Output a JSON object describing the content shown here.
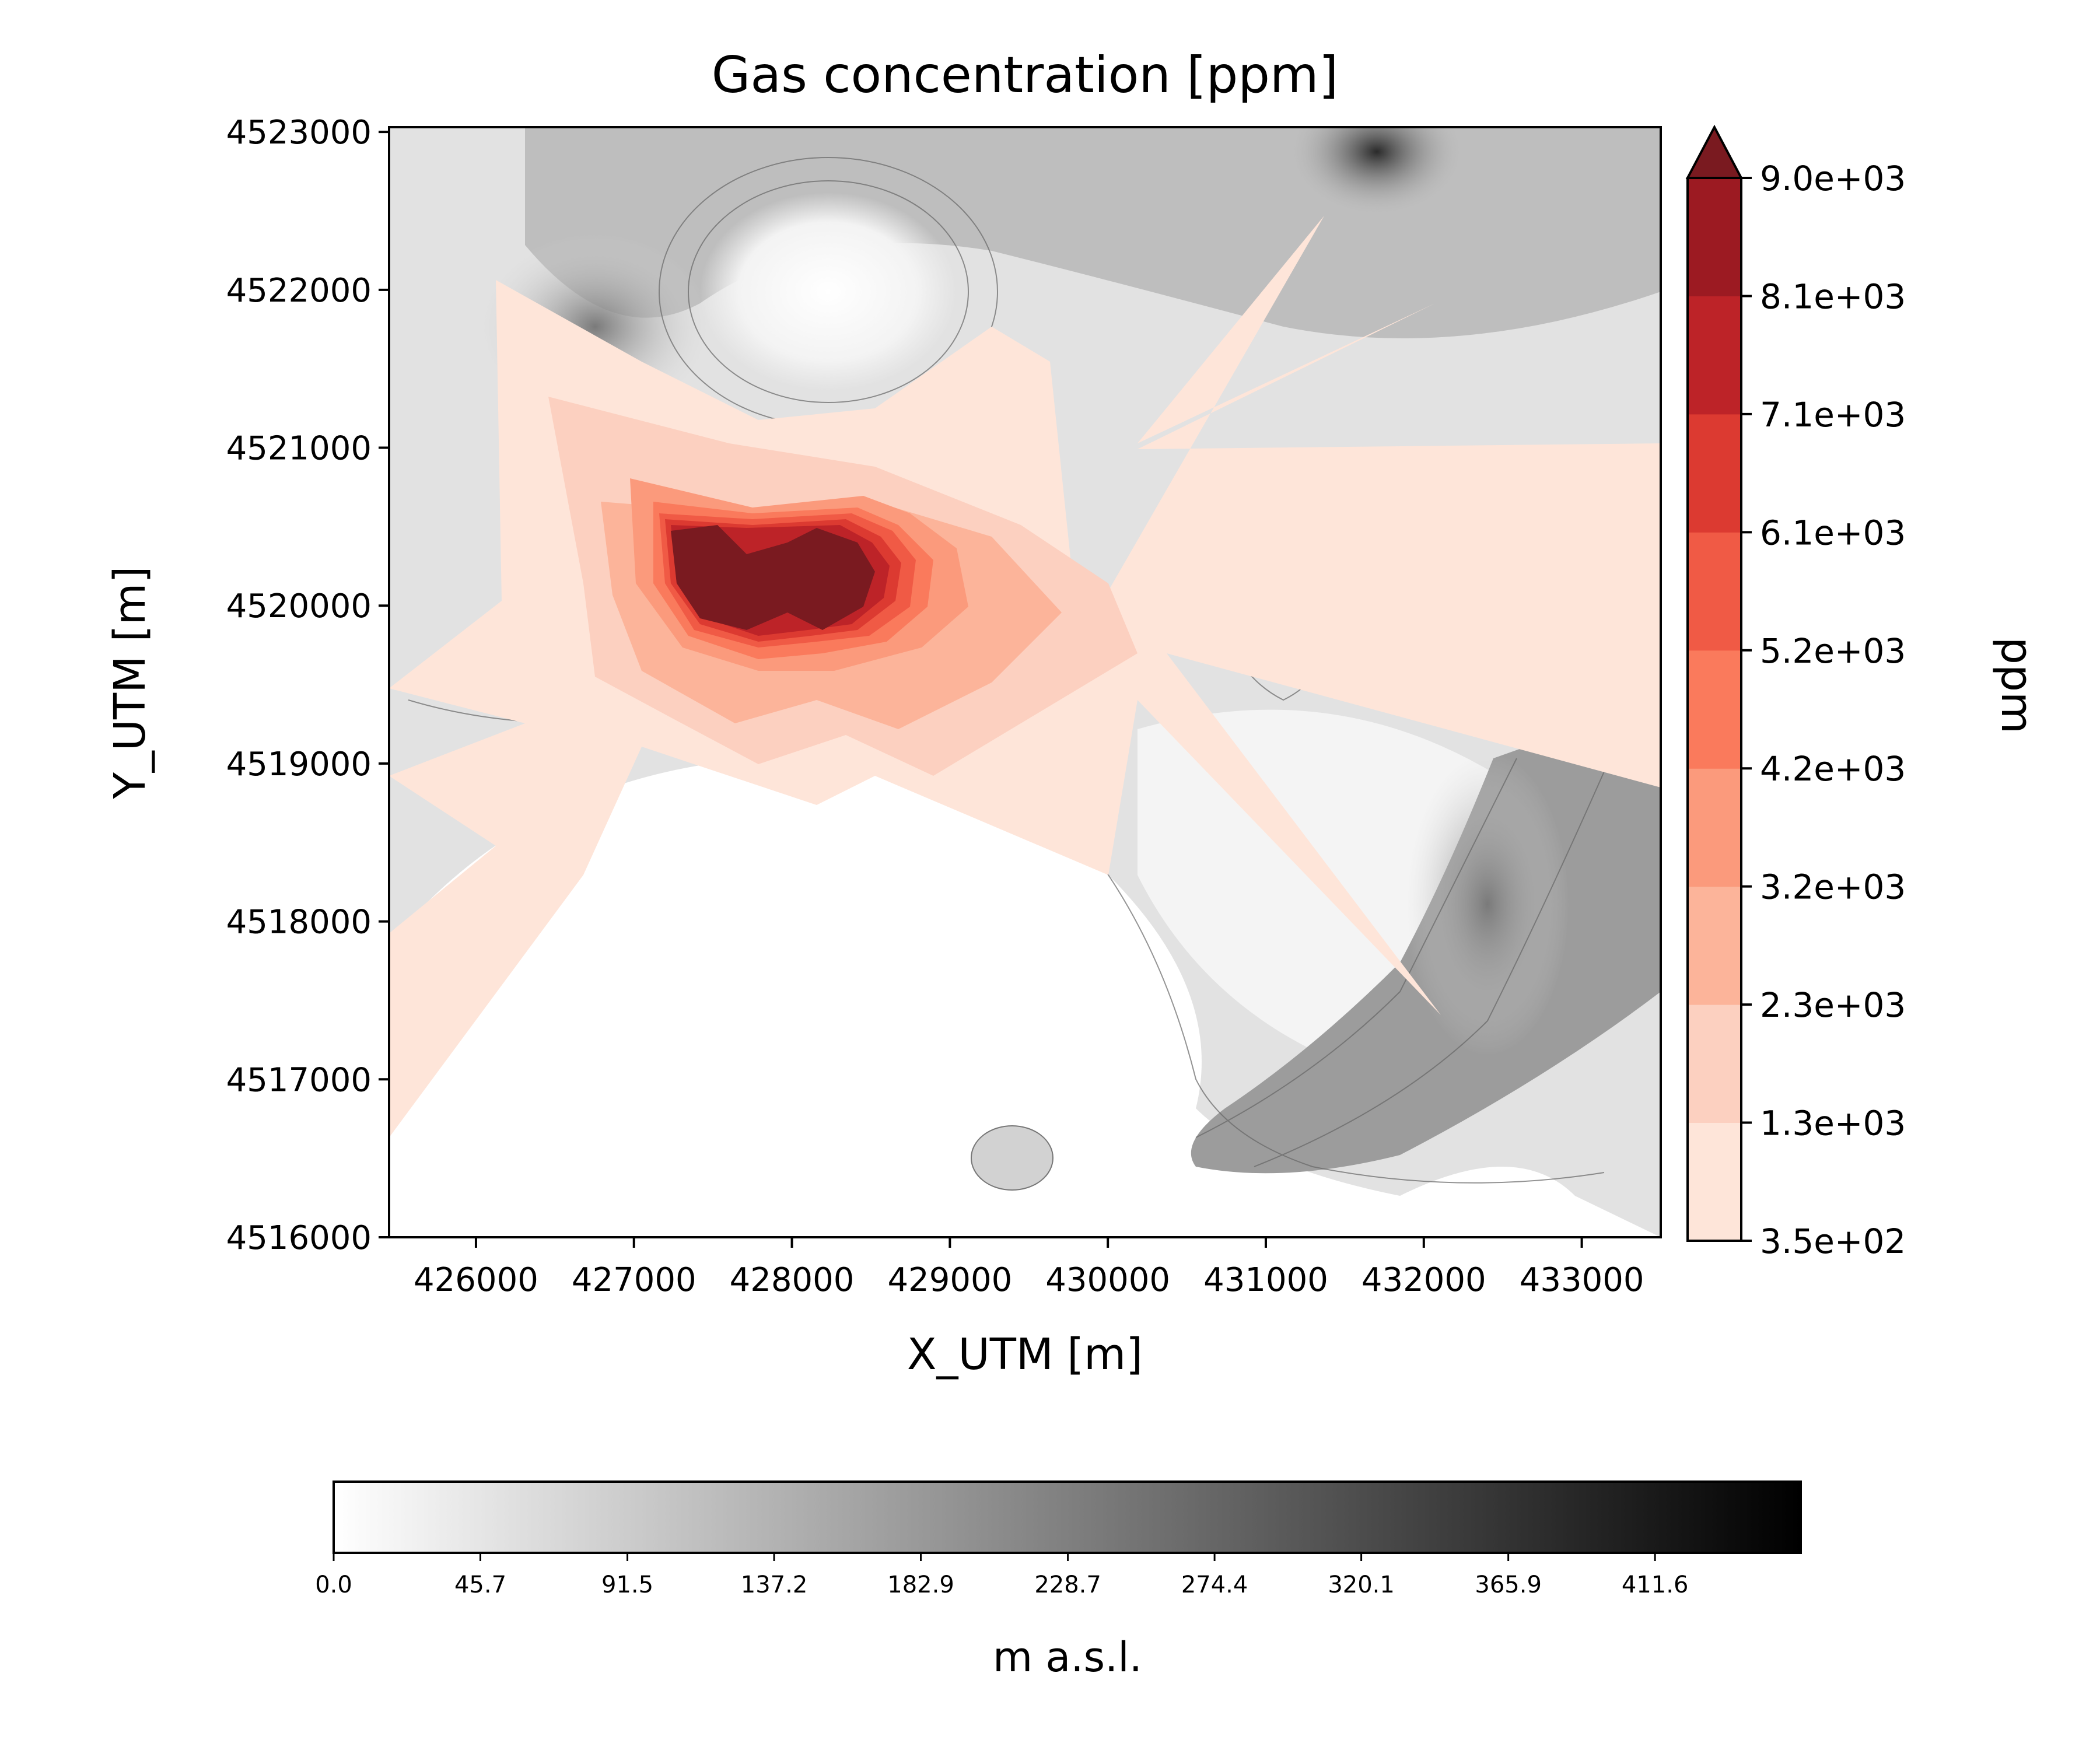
{
  "chart_data": [
    {
      "type": "heatmap",
      "title": "Gas concentration [ppm]",
      "xlabel": "X_UTM [m]",
      "ylabel": "Y_UTM [m]",
      "xlim": [
        425450,
        433500
      ],
      "ylim": [
        4516000,
        4523030
      ],
      "x_ticks": [
        426000,
        427000,
        428000,
        429000,
        430000,
        431000,
        432000,
        433000
      ],
      "y_ticks": [
        4516000,
        4517000,
        4518000,
        4519000,
        4520000,
        4521000,
        4522000,
        4523000
      ],
      "x_tick_labels": [
        "426000",
        "427000",
        "428000",
        "429000",
        "430000",
        "431000",
        "432000",
        "433000"
      ],
      "y_tick_labels": [
        "4516000",
        "4517000",
        "4518000",
        "4519000",
        "4520000",
        "4521000",
        "4522000",
        "4523000"
      ],
      "source_location": [
        427800,
        4520100
      ],
      "colorbar": {
        "label": "ppm",
        "levels": [
          350,
          1300,
          2300,
          3200,
          4200,
          5200,
          6100,
          7100,
          8100,
          9000
        ],
        "level_labels": [
          "3.5e+02",
          "1.3e+03",
          "2.3e+03",
          "3.2e+03",
          "4.2e+03",
          "5.2e+03",
          "6.1e+03",
          "7.1e+03",
          "8.1e+03",
          "9.0e+03"
        ],
        "colors": [
          "#fee5d9",
          "#fcd0c0",
          "#fcb49a",
          "#fb9a7c",
          "#fa7a5c",
          "#f05a45",
          "#dc3a31",
          "#bd2328",
          "#9c1a22"
        ],
        "extend": "max",
        "extend_color": "#7a1a20"
      },
      "grid": false
    },
    {
      "type": "heatmap",
      "label": "m a.s.l.",
      "range": [
        0,
        457
      ],
      "ticks": [
        0.0,
        45.7,
        91.5,
        137.2,
        182.9,
        228.7,
        274.4,
        320.1,
        365.9,
        411.6
      ],
      "tick_labels": [
        "0.0",
        "45.7",
        "91.5",
        "137.2",
        "182.9",
        "228.7",
        "274.4",
        "320.1",
        "365.9",
        "411.6"
      ],
      "cmap": "gray_r",
      "orientation": "horizontal"
    }
  ]
}
